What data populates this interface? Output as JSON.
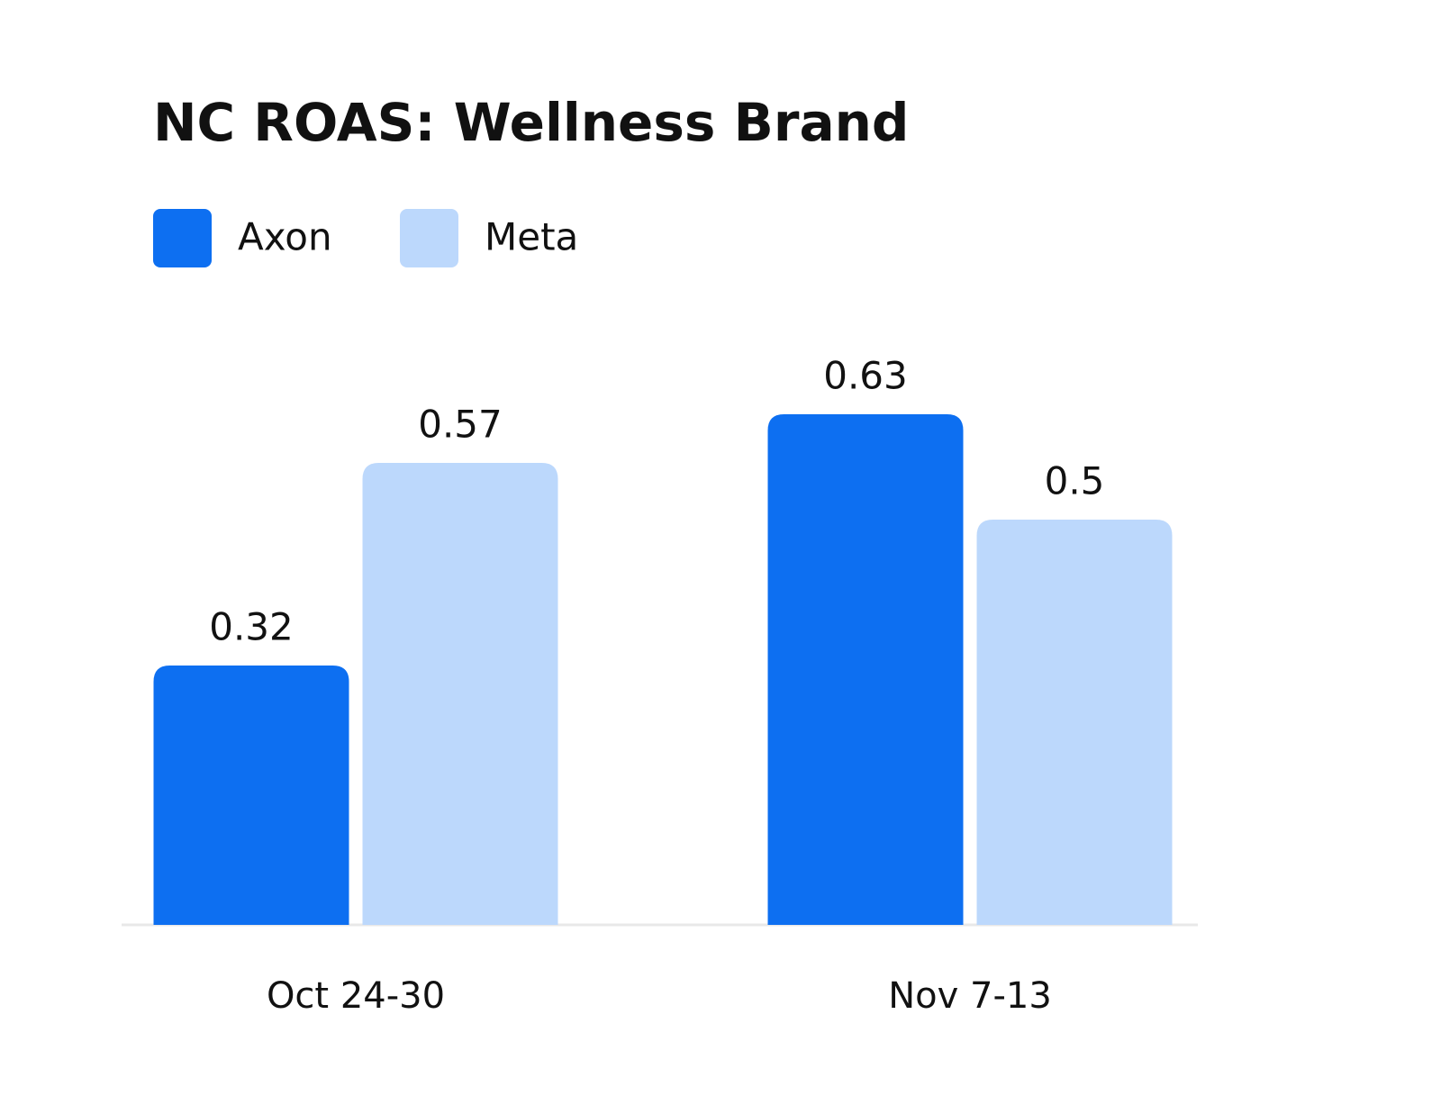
{
  "chart_data": {
    "type": "bar",
    "title": "NC ROAS: Wellness Brand",
    "categories": [
      "Oct 24-30",
      "Nov 7-13"
    ],
    "series": [
      {
        "name": "Axon",
        "color": "#0d6ff1",
        "values": [
          0.32,
          0.63
        ]
      },
      {
        "name": "Meta",
        "color": "#bcd8fc",
        "values": [
          0.57,
          0.5
        ]
      }
    ]
  }
}
